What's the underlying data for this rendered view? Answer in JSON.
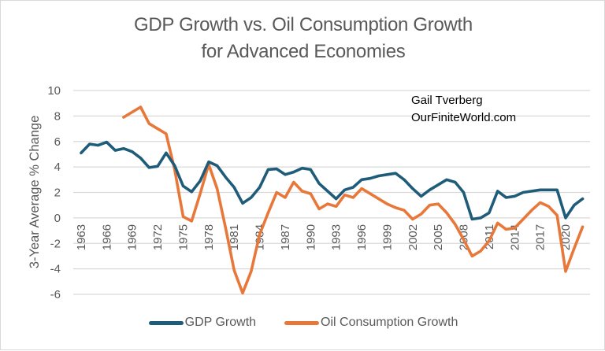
{
  "chart_data": {
    "type": "line",
    "title": "GDP Growth vs. Oil Consumption Growth for Advanced Economies",
    "title_lines": [
      "GDP Growth vs. Oil Consumption Growth",
      "for Advanced Economies"
    ],
    "xlabel": "",
    "ylabel": "3-Year Average % Change",
    "ylim": [
      -6,
      10
    ],
    "yticks": [
      10,
      8,
      6,
      4,
      2,
      0,
      -2,
      -4,
      -6
    ],
    "ytick_labels": [
      "10",
      "8",
      "6",
      "4",
      "2",
      "0",
      "-2",
      "-4",
      "-6"
    ],
    "xlim": [
      1963,
      2022
    ],
    "xticks": [
      1963,
      1966,
      1969,
      1972,
      1975,
      1978,
      1981,
      1984,
      1987,
      1990,
      1993,
      1996,
      1999,
      2002,
      2005,
      2008,
      2011,
      2014,
      2017,
      2020
    ],
    "xtick_labels": [
      "1963",
      "1966",
      "1969",
      "1972",
      "1975",
      "1978",
      "1981",
      "1984",
      "1987",
      "1990",
      "1993",
      "1996",
      "1999",
      "2002",
      "2005",
      "2008",
      "2011",
      "2014",
      "2017",
      "2020"
    ],
    "grid": "horizontal",
    "legend_position": "bottom",
    "annotations": [
      "Gail Tverberg",
      "OurFiniteWorld.com"
    ],
    "series": [
      {
        "name": "GDP Growth",
        "color": "#1f5c7a",
        "x": [
          1963,
          1964,
          1965,
          1966,
          1967,
          1968,
          1969,
          1970,
          1971,
          1972,
          1973,
          1974,
          1975,
          1976,
          1977,
          1978,
          1979,
          1980,
          1981,
          1982,
          1983,
          1984,
          1985,
          1986,
          1987,
          1988,
          1989,
          1990,
          1991,
          1992,
          1993,
          1994,
          1995,
          1996,
          1997,
          1998,
          1999,
          2000,
          2001,
          2002,
          2003,
          2004,
          2005,
          2006,
          2007,
          2008,
          2009,
          2010,
          2011,
          2012,
          2013,
          2014,
          2015,
          2016,
          2017,
          2018,
          2019,
          2020,
          2021,
          2022
        ],
        "values": [
          5.1,
          5.8,
          5.7,
          5.95,
          5.3,
          5.45,
          5.2,
          4.7,
          3.95,
          4.05,
          5.1,
          4.1,
          2.5,
          2.05,
          2.9,
          4.4,
          4.1,
          3.2,
          2.4,
          1.15,
          1.6,
          2.4,
          3.8,
          3.85,
          3.4,
          3.6,
          3.9,
          3.8,
          2.7,
          2.1,
          1.5,
          2.2,
          2.4,
          3.0,
          3.1,
          3.3,
          3.4,
          3.5,
          3.0,
          2.3,
          1.7,
          2.2,
          2.6,
          3.0,
          2.8,
          2.0,
          -0.1,
          0.0,
          0.4,
          2.1,
          1.6,
          1.7,
          2.0,
          2.1,
          2.2,
          2.2,
          2.2,
          0.0,
          1.0,
          1.5
        ]
      },
      {
        "name": "Oil Consumption Growth",
        "color": "#e8783a",
        "x": [
          1968,
          1969,
          1970,
          1971,
          1972,
          1973,
          1974,
          1975,
          1976,
          1977,
          1978,
          1979,
          1980,
          1981,
          1982,
          1983,
          1984,
          1985,
          1986,
          1987,
          1988,
          1989,
          1990,
          1991,
          1992,
          1993,
          1994,
          1995,
          1996,
          1997,
          1998,
          1999,
          2000,
          2001,
          2002,
          2003,
          2004,
          2005,
          2006,
          2007,
          2008,
          2009,
          2010,
          2011,
          2012,
          2013,
          2014,
          2015,
          2016,
          2017,
          2018,
          2019,
          2020,
          2021,
          2022
        ],
        "values": [
          7.9,
          8.3,
          8.7,
          7.4,
          7.0,
          6.6,
          3.8,
          0.1,
          -0.25,
          1.9,
          4.2,
          2.3,
          -0.8,
          -4.1,
          -5.9,
          -4.2,
          -1.3,
          0.4,
          2.0,
          1.6,
          2.8,
          2.1,
          1.9,
          0.7,
          1.1,
          0.9,
          1.8,
          1.6,
          2.3,
          1.9,
          1.5,
          1.1,
          0.8,
          0.6,
          -0.1,
          0.3,
          1.0,
          1.1,
          0.4,
          -0.5,
          -1.7,
          -3.0,
          -2.6,
          -1.8,
          -0.4,
          -0.9,
          -0.8,
          -0.1,
          0.6,
          1.2,
          0.9,
          0.2,
          -4.2,
          -2.4,
          -0.7
        ]
      }
    ]
  }
}
